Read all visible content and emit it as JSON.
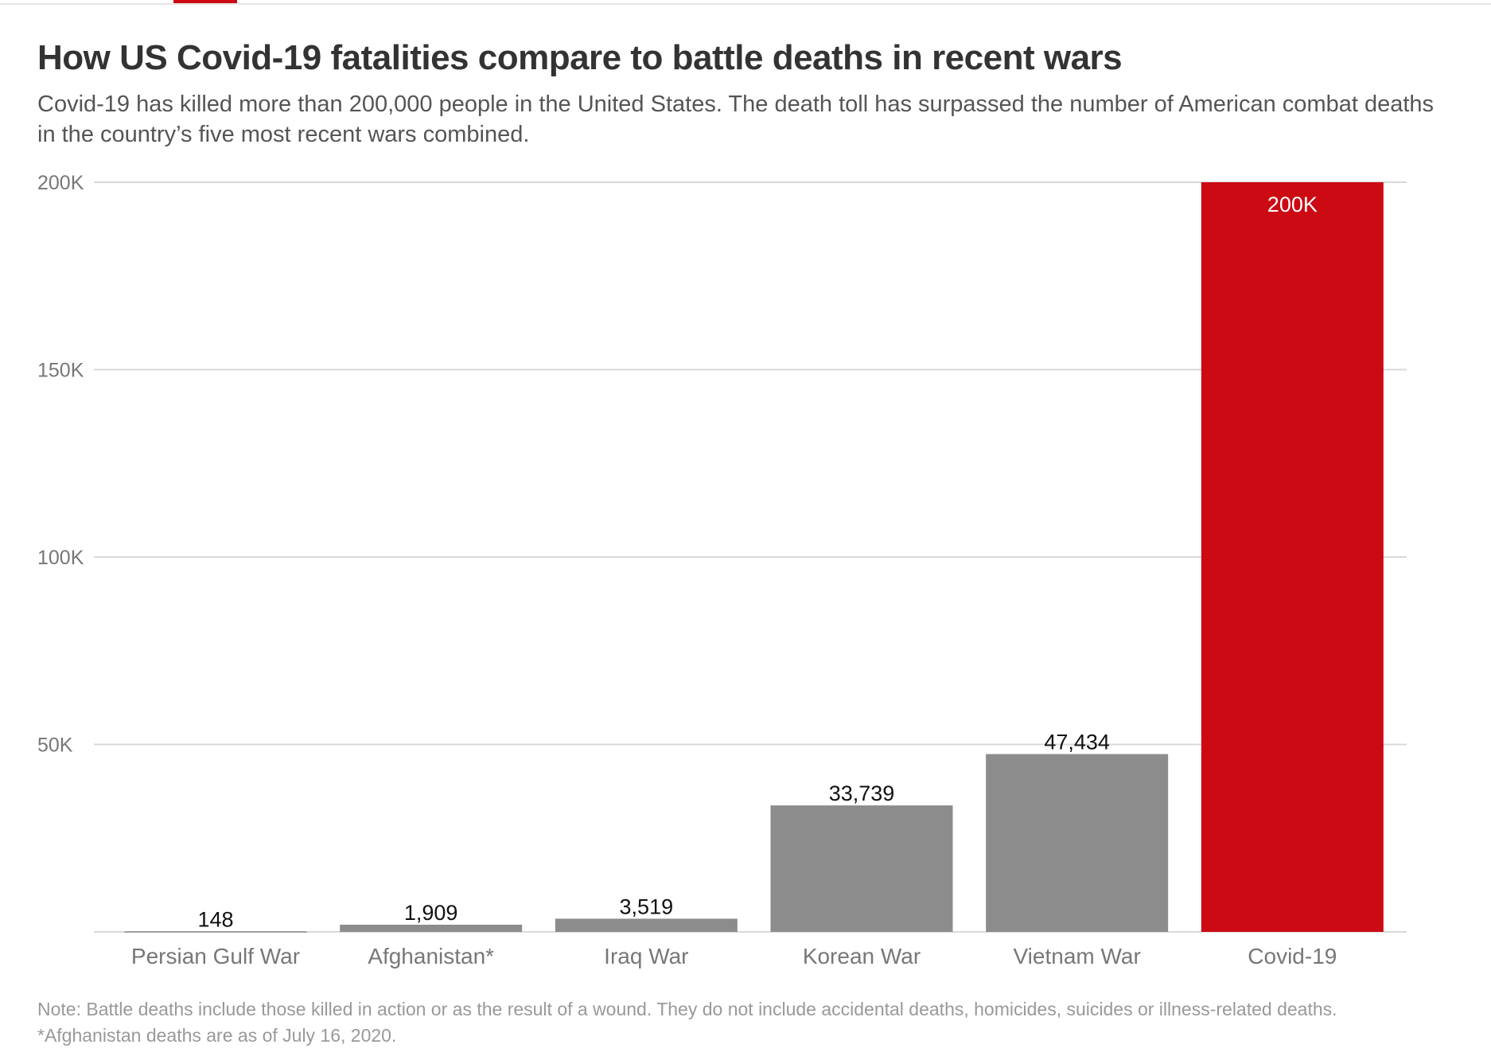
{
  "title": "How US Covid-19 fatalities compare to battle deaths in recent wars",
  "subtitle": "Covid-19 has killed more than 200,000 people in the United States. The death toll has surpassed the number of American combat deaths in the country’s five most recent wars combined.",
  "notes": [
    "Note: Battle deaths include those killed in action or as the result of a wound. They do not include accidental deaths, homicides, suicides or illness-related deaths.",
    "*Afghanistan deaths are as of July 16, 2020."
  ],
  "colors": {
    "bar": "#8c8c8c",
    "highlight": "#cc0a14",
    "grid": "#d9d9d9"
  },
  "chart_data": {
    "type": "bar",
    "title": "How US Covid-19 fatalities compare to battle deaths in recent wars",
    "categories": [
      "Persian Gulf War",
      "Afghanistan*",
      "Iraq War",
      "Korean War",
      "Vietnam War",
      "Covid-19"
    ],
    "values": [
      148,
      1909,
      3519,
      33739,
      47434,
      200000
    ],
    "data_labels": [
      "148",
      "1,909",
      "3,519",
      "33,739",
      "47,434",
      "200K"
    ],
    "highlight_index": 5,
    "ylim": [
      0,
      200000
    ],
    "yticks": [
      50000,
      100000,
      150000,
      200000
    ],
    "ytick_labels": [
      "50K",
      "100K",
      "150K",
      "200K"
    ],
    "xlabel": "",
    "ylabel": "",
    "grid": true,
    "legend": "none"
  }
}
